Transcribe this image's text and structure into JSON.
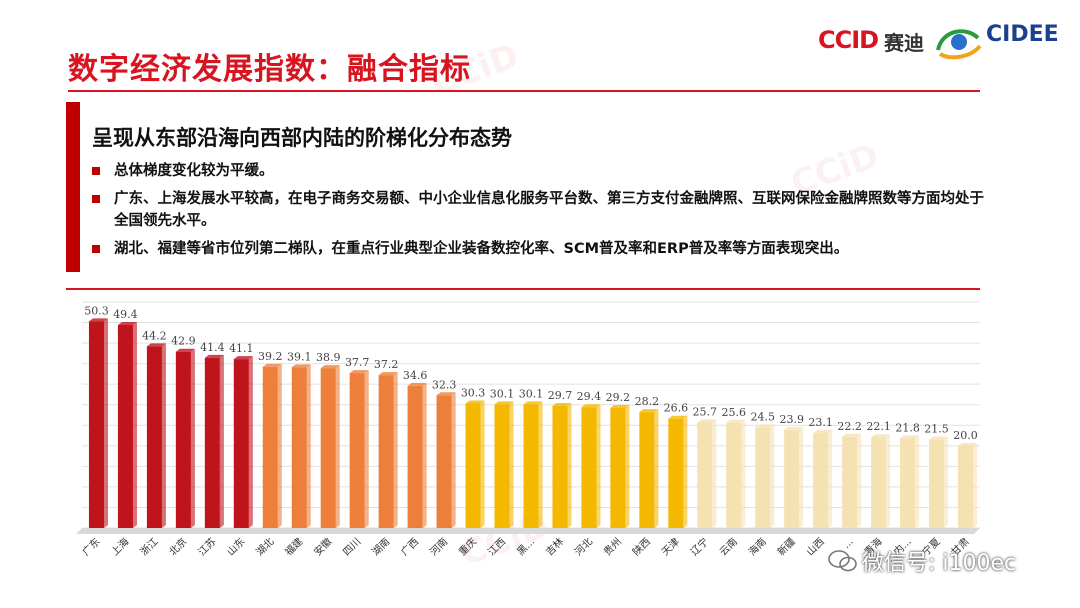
{
  "page": {
    "title": "数字经济发展指数：融合指标",
    "heading": "呈现从东部沿海向西部内陆的阶梯化分布态势",
    "bullets": [
      "总体梯度变化较为平缓。",
      "广东、上海发展水平较高，在电子商务交易额、中小企业信息化服务平台数、第三方支付金融牌照、互联网保险金融牌照数等方面均处于全国领先水平。",
      "湖北、福建等省市位列第二梯队，在重点行业典型企业装备数控化率、SCM普及率和ERP普及率等方面表现突出。"
    ]
  },
  "logos": {
    "ccid": "CCID",
    "ccid_cn": "赛迪",
    "cidee": "CIDEE"
  },
  "watermark": {
    "wechat": "微信号: i100ec"
  },
  "colors": {
    "accent": "#d7141f",
    "tier1": "#c0141c",
    "tier2": "#ee7f3a",
    "tier3": "#f5b800",
    "tier4": "#f5e2b3"
  },
  "chart_data": {
    "type": "bar",
    "categories": [
      "广东",
      "上海",
      "浙江",
      "北京",
      "江苏",
      "山东",
      "湖北",
      "福建",
      "安徽",
      "四川",
      "湖南",
      "广西",
      "河南",
      "重庆",
      "江西",
      "黑...",
      "吉林",
      "河北",
      "贵州",
      "陕西",
      "天津",
      "辽宁",
      "云南",
      "海南",
      "新疆",
      "山西",
      "...",
      "青海",
      "...内...",
      "宁夏",
      "甘肃"
    ],
    "values": [
      50.3,
      49.4,
      44.2,
      42.9,
      41.4,
      41.1,
      39.2,
      39.1,
      38.9,
      37.7,
      37.2,
      34.6,
      32.3,
      30.3,
      30.1,
      30.1,
      29.7,
      29.4,
      29.2,
      28.2,
      26.6,
      25.7,
      25.6,
      24.5,
      23.9,
      23.1,
      22.2,
      22.1,
      21.8,
      21.5,
      20.0
    ],
    "value_labels": [
      "50.3",
      "49.4",
      "44.2",
      "42.9",
      "41.4",
      "41.1",
      "39.2",
      "39.1",
      "38.9",
      "37.7",
      "37.2",
      "34.6",
      "32.3",
      "30.3",
      "30.1",
      "30.1",
      "29.7",
      "29.4",
      "29.2",
      "28.2",
      "26.6",
      "25.7",
      "25.6",
      "24.5",
      "23.9",
      "23.1",
      "22.2",
      "22.1",
      "21.8",
      "21.5",
      "20.0"
    ],
    "tiers": [
      1,
      1,
      1,
      1,
      1,
      1,
      2,
      2,
      2,
      2,
      2,
      2,
      2,
      3,
      3,
      3,
      3,
      3,
      3,
      3,
      3,
      4,
      4,
      4,
      4,
      4,
      4,
      4,
      4,
      4,
      4
    ],
    "ylim": [
      0,
      55
    ],
    "grid": true,
    "title": "",
    "xlabel": "",
    "ylabel": ""
  }
}
